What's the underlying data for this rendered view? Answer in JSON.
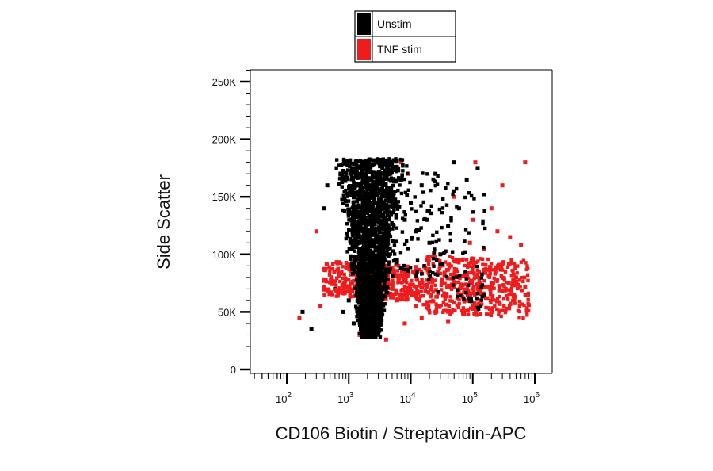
{
  "chart_data": {
    "type": "scatter",
    "title": "",
    "xlabel": "CD106 Biotin / Streptavidin-APC",
    "ylabel": "Side Scatter",
    "x_scale": "log",
    "xlim": [
      10,
      1000000
    ],
    "ylim": [
      0,
      262144
    ],
    "x_ticks": [
      {
        "value": 100,
        "base": "10",
        "exp": "2"
      },
      {
        "value": 1000,
        "base": "10",
        "exp": "3"
      },
      {
        "value": 10000,
        "base": "10",
        "exp": "4"
      },
      {
        "value": 100000,
        "base": "10",
        "exp": "5"
      },
      {
        "value": 1000000,
        "base": "10",
        "exp": "6"
      }
    ],
    "y_ticks": [
      {
        "value": 0,
        "label": "0"
      },
      {
        "value": 50000,
        "label": "50K"
      },
      {
        "value": 100000,
        "label": "100K"
      },
      {
        "value": 150000,
        "label": "150K"
      },
      {
        "value": 200000,
        "label": "200K"
      },
      {
        "value": 250000,
        "label": "250K"
      }
    ],
    "grid": false,
    "legend_position": "top",
    "series": [
      {
        "name": "TNF stim",
        "color": "#ee1c1c",
        "points": [
          [
            20000,
            78000
          ],
          [
            35000,
            65000
          ],
          [
            50000,
            72000
          ],
          [
            80000,
            60000
          ],
          [
            120000,
            70000
          ],
          [
            150000,
            85000
          ],
          [
            200000,
            75000
          ],
          [
            300000,
            68000
          ],
          [
            500000,
            80000
          ],
          [
            700000,
            72000
          ],
          [
            800000,
            56000
          ],
          [
            30000,
            90000
          ],
          [
            60000,
            95000
          ],
          [
            90000,
            110000
          ],
          [
            150000,
            105000
          ],
          [
            250000,
            120000
          ],
          [
            400000,
            115000
          ],
          [
            600000,
            108000
          ],
          [
            100000,
            130000
          ],
          [
            200000,
            140000
          ],
          [
            50000,
            150000
          ],
          [
            300000,
            160000
          ],
          [
            700000,
            180000
          ],
          [
            12000,
            55000
          ],
          [
            15000,
            45000
          ],
          [
            8000,
            40000
          ],
          [
            6000,
            60000
          ],
          [
            25000,
            50000
          ],
          [
            40000,
            42000
          ],
          [
            70000,
            48000
          ],
          [
            160,
            45000
          ],
          [
            300,
            120000
          ],
          [
            350,
            55000
          ],
          [
            1500,
            30000
          ],
          [
            2500,
            28000
          ],
          [
            4000,
            26000
          ],
          [
            7000,
            180000
          ],
          [
            9000,
            170000
          ],
          [
            110000,
            180000
          ],
          [
            200000,
            50000
          ]
        ]
      },
      {
        "name": "Unstim",
        "color": "#000000",
        "points": [
          [
            1000,
            60000
          ],
          [
            1500,
            90000
          ],
          [
            2000,
            120000
          ],
          [
            2500,
            150000
          ],
          [
            3000,
            180000
          ],
          [
            1200,
            40000
          ],
          [
            800,
            50000
          ],
          [
            600,
            70000
          ],
          [
            2200,
            160000
          ],
          [
            3500,
            175000
          ],
          [
            5000,
            150000
          ],
          [
            8000,
            130000
          ],
          [
            12000,
            120000
          ],
          [
            20000,
            110000
          ],
          [
            30000,
            100000
          ],
          [
            15000,
            160000
          ],
          [
            25000,
            170000
          ],
          [
            50000,
            180000
          ],
          [
            80000,
            165000
          ],
          [
            120000,
            175000
          ],
          [
            180,
            50000
          ],
          [
            250,
            35000
          ],
          [
            400,
            140000
          ],
          [
            450,
            160000
          ],
          [
            4000,
            85000
          ],
          [
            6000,
            95000
          ],
          [
            10000,
            145000
          ],
          [
            18000,
            130000
          ],
          [
            40000,
            125000
          ],
          [
            60000,
            140000
          ]
        ]
      }
    ]
  }
}
